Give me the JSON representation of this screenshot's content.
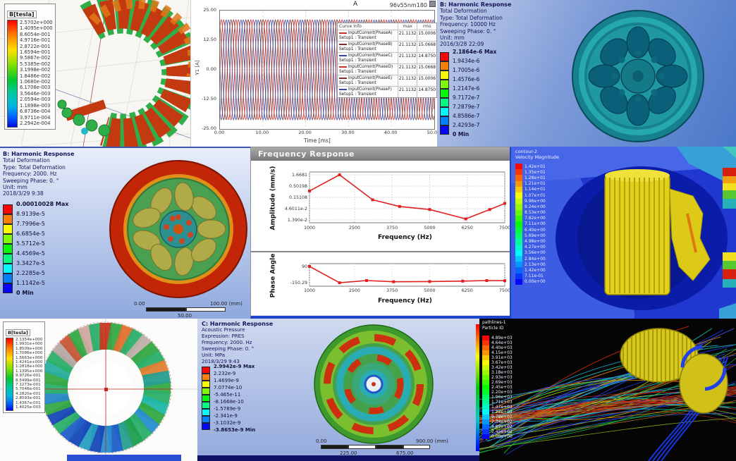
{
  "colors": {
    "ansys_header": "#14145a",
    "plot_line_red": "#e02020",
    "window_border_blue": "#1e44cc"
  },
  "panels": {
    "maxwell_torus": {
      "legend_title": "B[tesla]",
      "legend_values": [
        "2.5702e+000",
        "1.4095e+000",
        "8.6054e-001",
        "4.9716e-001",
        "2.8722e-001",
        "1.6594e-001",
        "9.5867e-002",
        "5.5385e-002",
        "3.1998e-002",
        "1.8486e-002",
        "1.0680e-002",
        "6.1708e-003",
        "3.5646e-003",
        "2.0594e-003",
        "1.1898e-003",
        "6.8736e-004",
        "3.9711e-004",
        "2.2942e-004"
      ]
    },
    "xy_plot": {
      "title": "A",
      "model_label": "96v55nm180",
      "y_label": "Y1 [A]",
      "x_label": "Time [ms]",
      "y_ticks": [
        "25.00",
        "12.50",
        "0.00",
        "-12.50",
        "-25.00"
      ],
      "x_ticks": [
        "0.00",
        "10.00",
        "20.00",
        "30.00",
        "40.00",
        "50.00"
      ],
      "legend": {
        "columns": [
          "Curve Info",
          "max",
          "rms"
        ],
        "rows": [
          {
            "name": "InputCurrent(PhaseA)",
            "setup": "Setup1 : Transient",
            "max": "21.1132",
            "rms": "15.0006",
            "color": "#c23434"
          },
          {
            "name": "InputCurrent(PhaseB)",
            "setup": "Setup1 : Transient",
            "max": "21.1132",
            "rms": "15.0668",
            "color": "#7a3030"
          },
          {
            "name": "InputCurrent(PhaseC)",
            "setup": "Setup1 : Transient",
            "max": "21.1132",
            "rms": "14.8750",
            "color": "#3a4a9c"
          },
          {
            "name": "InputCurrent(PhaseD)",
            "setup": "Setup1 : Transient",
            "max": "21.1132",
            "rms": "15.0668",
            "color": "#c23434"
          },
          {
            "name": "InputCurrent(PhaseE)",
            "setup": "Setup1 : Transient",
            "max": "21.1132",
            "rms": "15.0006",
            "color": "#7a3030"
          },
          {
            "name": "InputCurrent(PhaseF)",
            "setup": "Setup1 : Transient",
            "max": "21.1132",
            "rms": "14.8750",
            "color": "#3a4a9c"
          }
        ]
      }
    },
    "harmonic_top": {
      "header": [
        "B: Harmonic Response",
        "Total Deformation",
        "Type: Total Deformation",
        "Frequency: 10000 Hz",
        "Sweeping Phase: 0. °",
        "Unit: mm",
        "2016/3/28 22:09"
      ],
      "colorbar": [
        "2.1864e-6 Max",
        "1.9434e-6",
        "1.7005e-6",
        "1.4576e-6",
        "1.2147e-6",
        "9.7172e-7",
        "7.2879e-7",
        "4.8586e-7",
        "2.4293e-7",
        "0 Min"
      ]
    },
    "harmonic_left": {
      "header": [
        "B: Harmonic Response",
        "Total Deformation",
        "Type: Total Deformation",
        "Frequency: 2000. Hz",
        "Sweeping Phase: 0. °",
        "Unit: mm",
        "2018/3/29 9:38"
      ],
      "colorbar": [
        "0.00010028 Max",
        "8.9139e-5",
        "7.7996e-5",
        "6.6854e-5",
        "5.5712e-5",
        "4.4569e-5",
        "3.3427e-5",
        "2.2285e-5",
        "1.1142e-5",
        "0 Min"
      ],
      "scale": {
        "start": "0.00",
        "end": "100.00 (mm)",
        "mid": "50.00"
      }
    },
    "freq_response": {
      "window_title": "Frequency Response",
      "amp_ylabel": "Amplitude (mm/s)",
      "phase_ylabel": "Phase Angle",
      "xlabel": "Frequency (Hz)"
    },
    "cfd_contour": {
      "title1": "contour-2",
      "title2": "Velocity Magnitude",
      "colorbar": [
        "1.42e+01",
        "1.35e+01",
        "1.28e+01",
        "1.21e+01",
        "1.14e+01",
        "1.07e+01",
        "9.96e+00",
        "9.24e+00",
        "8.53e+00",
        "7.82e+00",
        "7.11e+00",
        "6.40e+00",
        "5.69e+00",
        "4.98e+00",
        "4.27e+00",
        "3.56e+00",
        "2.84e+00",
        "2.13e+00",
        "1.42e+00",
        "7.11e-01",
        "0.00e+00"
      ]
    },
    "maxwell_rotor": {
      "legend_title": "B[tesla]",
      "legend_values": [
        "2.1354e+000",
        "1.9931e+000",
        "1.8509e+000",
        "1.7086e+000",
        "1.5663e+000",
        "1.4241e+000",
        "1.2818e+000",
        "1.1395e+000",
        "9.9726e-001",
        "8.5499e-001",
        "7.1273e-001",
        "5.7046e-001",
        "4.2820e-001",
        "2.8593e-001",
        "1.4367e-001",
        "1.4025e-003"
      ]
    },
    "acoustic": {
      "header": [
        "C: Harmonic Response",
        "Acoustic Pressure",
        "Expression: PRES",
        "Frequency: 2000. Hz",
        "Sweeping Phase: 0. °",
        "Unit: MPa",
        "2018/3/29 9:43"
      ],
      "colorbar": [
        "2.9942e-9 Max",
        "2.232e-9",
        "1.4699e-9",
        "7.0774e-10",
        "-5.465e-11",
        "-8.1668e-10",
        "-1.5789e-9",
        "-2.341e-9",
        "-3.1032e-9",
        "-3.8653e-9 Min"
      ],
      "scale": {
        "start": "0.00",
        "end": "900.00 (mm)",
        "q1": "225.00",
        "q3": "675.00"
      }
    },
    "pathlines": {
      "title1": "pathlines-1",
      "title2": "Particle ID",
      "colorbar": [
        "4.89e+03",
        "4.64e+03",
        "4.40e+03",
        "4.15e+03",
        "3.91e+03",
        "3.67e+03",
        "3.42e+03",
        "3.18e+03",
        "2.93e+03",
        "2.69e+03",
        "2.45e+03",
        "2.20e+03",
        "1.96e+03",
        "1.71e+03",
        "1.47e+03",
        "1.22e+03",
        "9.78e+02",
        "7.34e+02",
        "4.89e+02",
        "2.45e+02",
        "0.00e+00"
      ]
    }
  },
  "chart_data": [
    {
      "id": "phase_currents",
      "type": "line",
      "title": "A",
      "xlabel": "Time [ms]",
      "ylabel": "Y1 [A]",
      "xlim": [
        0,
        50
      ],
      "ylim": [
        -25,
        25
      ],
      "x_ticks": [
        0,
        10,
        20,
        30,
        40,
        50
      ],
      "y_ticks": [
        25,
        12.5,
        0,
        -12.5,
        -25
      ],
      "series": [
        {
          "name": "InputCurrent(PhaseA)",
          "amplitude": 21.1132,
          "period_ms": 3.45,
          "phase_deg": 0,
          "color": "#c23434"
        },
        {
          "name": "InputCurrent(PhaseB)",
          "amplitude": 21.1132,
          "period_ms": 3.45,
          "phase_deg": 120,
          "color": "#7a3030"
        },
        {
          "name": "InputCurrent(PhaseC)",
          "amplitude": 21.1132,
          "period_ms": 3.45,
          "phase_deg": 240,
          "color": "#3a4a9c"
        },
        {
          "name": "InputCurrent(PhaseD)",
          "amplitude": 21.1132,
          "period_ms": 3.45,
          "phase_deg": 60,
          "color": "#c23434"
        },
        {
          "name": "InputCurrent(PhaseE)",
          "amplitude": 21.1132,
          "period_ms": 3.45,
          "phase_deg": 180,
          "color": "#7a3030"
        },
        {
          "name": "InputCurrent(PhaseF)",
          "amplitude": 21.1132,
          "period_ms": 3.45,
          "phase_deg": 300,
          "color": "#3a4a9c"
        }
      ]
    },
    {
      "id": "freq_amplitude",
      "type": "line",
      "ylog": true,
      "xlabel": "Frequency (Hz)",
      "ylabel": "Amplitude (mm/s)",
      "x": [
        1000,
        2000,
        3100,
        4000,
        5000,
        6200,
        7000,
        7500
      ],
      "y": [
        0.3,
        1.6681,
        0.118,
        0.058,
        0.042,
        0.0155,
        0.042,
        0.08
      ],
      "y_tick_labels": [
        "1.6681",
        "0.50198",
        "0.15108",
        "4.6011e-2",
        "1.390e-2"
      ],
      "y_tick_values": [
        1.6681,
        0.50198,
        0.15108,
        0.046011,
        0.0139
      ],
      "x_ticks": [
        1000,
        2500,
        3750,
        5000,
        6250,
        7500
      ],
      "xlim": [
        1000,
        7500
      ],
      "color": "#e02020"
    },
    {
      "id": "freq_phase",
      "type": "line",
      "xlabel": "Frequency (Hz)",
      "ylabel": "Phase Angle",
      "x": [
        1000,
        2000,
        2900,
        3800,
        5000,
        6100,
        6900,
        7500
      ],
      "y": [
        90,
        -150.29,
        -118,
        -135,
        -132,
        -126,
        -118,
        -120
      ],
      "y_tick_labels": [
        "90",
        "-150.29"
      ],
      "y_tick_values": [
        90,
        -150.29
      ],
      "ylim": [
        110,
        -180
      ],
      "x_ticks": [
        1000,
        2500,
        3750,
        5000,
        6250,
        7500
      ],
      "xlim": [
        1000,
        7500
      ],
      "color": "#e02020"
    }
  ]
}
